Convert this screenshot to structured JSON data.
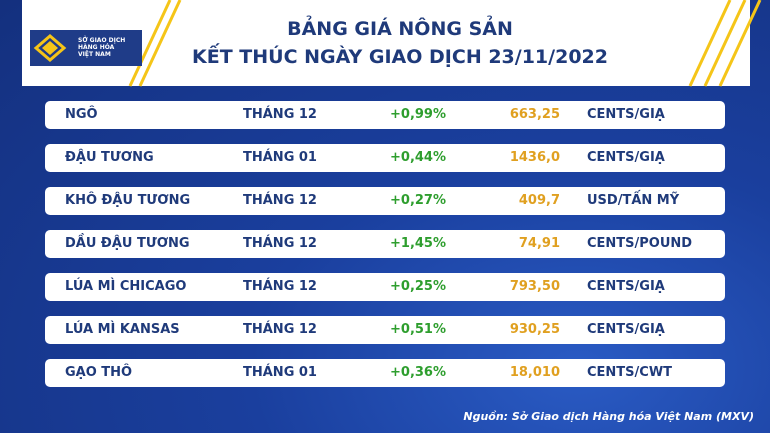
{
  "header": {
    "logo": [
      "SỞ GIAO DỊCH",
      "HÀNG HÓA",
      "VIỆT NAM"
    ],
    "title": [
      "BẢNG GIÁ NÔNG SẢN",
      "KẾT THÚC NGÀY GIAO DỊCH 23/11/2022"
    ]
  },
  "table": {
    "rows": [
      [
        "NGÔ",
        "THÁNG 12",
        "+0,99%",
        "663,25",
        "CENTS/GIẠ"
      ],
      [
        "ĐẬU TƯƠNG",
        "THÁNG 01",
        "+0,44%",
        "1436,0",
        "CENTS/GIẠ"
      ],
      [
        "KHÔ ĐẬU TƯƠNG",
        "THÁNG 12",
        "+0,27%",
        "409,7",
        "USD/TẤN MỸ"
      ],
      [
        "DẦU ĐẬU TƯƠNG",
        "THÁNG 12",
        "+1,45%",
        "74,91",
        "CENTS/POUND"
      ],
      [
        "LÚA MÌ CHICAGO",
        "THÁNG 12",
        "+0,25%",
        "793,50",
        "CENTS/GIẠ"
      ],
      [
        "LÚA MÌ KANSAS",
        "THÁNG 12",
        "+0,51%",
        "930,25",
        "CENTS/GIẠ"
      ],
      [
        "GẠO THÔ",
        "THÁNG 01",
        "+0,36%",
        "18,010",
        "CENTS/CWT"
      ]
    ]
  },
  "source": "Nguồn: Sở Giao dịch Hàng hóa Việt Nam (MXV)"
}
